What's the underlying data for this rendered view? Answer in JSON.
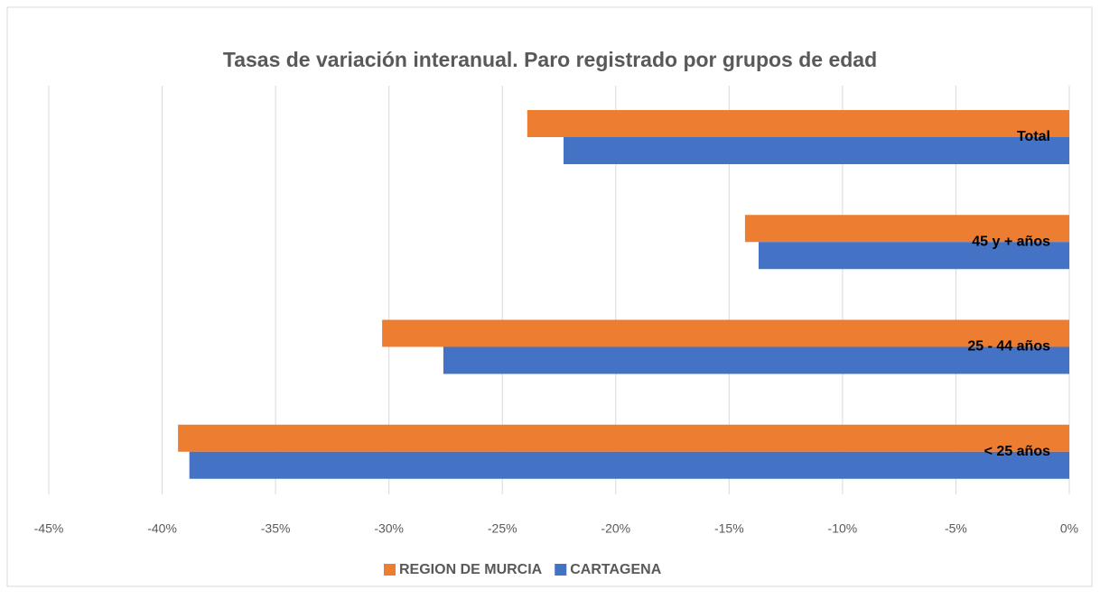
{
  "chart_data": {
    "type": "hbar",
    "title": "Tasas de variación interanual. Paro registrado por grupos de edad",
    "categories": [
      "Total",
      "45 y + años",
      "25 - 44 años",
      "< 25 años"
    ],
    "series": [
      {
        "name": "REGION DE MURCIA",
        "color": "#ed7d31",
        "values": [
          -23.9,
          -14.3,
          -30.3,
          -39.3
        ]
      },
      {
        "name": "CARTAGENA",
        "color": "#4472c4",
        "values": [
          -22.3,
          -13.7,
          -27.6,
          -38.8
        ]
      }
    ],
    "xlim": [
      -45,
      0
    ],
    "xticks": [
      {
        "value": -45,
        "label": "-45%"
      },
      {
        "value": -40,
        "label": "-40%"
      },
      {
        "value": -35,
        "label": "-35%"
      },
      {
        "value": -30,
        "label": "-30%"
      },
      {
        "value": -25,
        "label": "-25%"
      },
      {
        "value": -20,
        "label": "-20%"
      },
      {
        "value": -15,
        "label": "-15%"
      },
      {
        "value": -10,
        "label": "-10%"
      },
      {
        "value": -5,
        "label": "-5%"
      },
      {
        "value": 0,
        "label": "0%"
      }
    ],
    "grid": true,
    "legend": "bottom"
  }
}
